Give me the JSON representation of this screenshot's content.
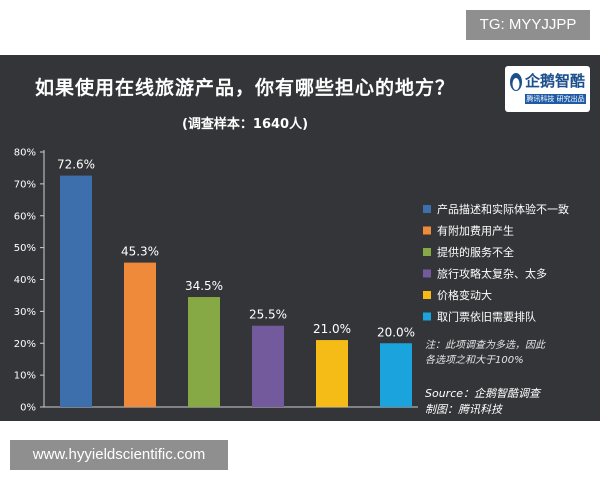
{
  "watermark_top": "TG: MYYJJPP",
  "watermark_bottom": "www.hyyieldscientific.com",
  "logo": {
    "name": "企鹅智酷",
    "tagline": "腾讯科技 研究出品"
  },
  "notes": {
    "note_line1": "注：此项调查为多选，因此",
    "note_line2": "各选项之和大于100%",
    "source_line1": "Source：企鹅智酷调查",
    "source_line2": "制图：腾讯科技"
  },
  "chart_data": {
    "type": "bar",
    "title": "如果使用在线旅游产品，你有哪些担心的地方？",
    "subtitle": "(调查样本：1640人)",
    "categories": [
      "产品描述和实际体验不一致",
      "有附加费用产生",
      "提供的服务不全",
      "旅行攻略太复杂、太多",
      "价格变动大",
      "取门票依旧需要排队"
    ],
    "values": [
      72.6,
      45.3,
      34.5,
      25.5,
      21.0,
      20.0
    ],
    "value_labels": [
      "72.6%",
      "45.3%",
      "34.5%",
      "25.5%",
      "21.0%",
      "20.0%"
    ],
    "colors": [
      "#3d6fad",
      "#ef8a3a",
      "#86a845",
      "#735a9c",
      "#f5bc18",
      "#1aa3dc"
    ],
    "yticks": [
      "0%",
      "10%",
      "20%",
      "30%",
      "40%",
      "50%",
      "60%",
      "70%",
      "80%"
    ],
    "ylim": [
      0,
      80
    ],
    "xlabel": "",
    "ylabel": "",
    "grid": false,
    "legend_position": "right"
  }
}
